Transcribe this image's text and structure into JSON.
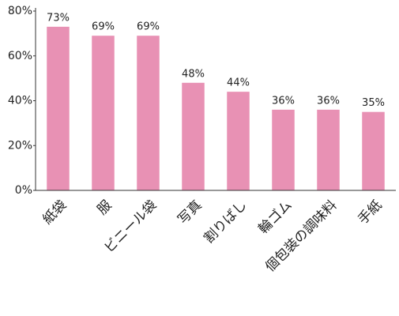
{
  "chart_data": {
    "type": "bar",
    "categories": [
      "紙袋",
      "服",
      "ビニール袋",
      "写真",
      "割りばし",
      "輪ゴム",
      "個包装の調味料",
      "手紙"
    ],
    "values": [
      73,
      69,
      69,
      48,
      44,
      36,
      36,
      35
    ],
    "value_labels": [
      "73%",
      "69%",
      "69%",
      "48%",
      "44%",
      "36%",
      "36%",
      "35%"
    ],
    "color": "#e891b4",
    "ylim": [
      0,
      80
    ],
    "yticks": [
      {
        "value": 0,
        "label": "0%"
      },
      {
        "value": 20,
        "label": "20%"
      },
      {
        "value": 40,
        "label": "40%"
      },
      {
        "value": 60,
        "label": "60%"
      },
      {
        "value": 80,
        "label": "80%"
      }
    ],
    "grid": false
  }
}
